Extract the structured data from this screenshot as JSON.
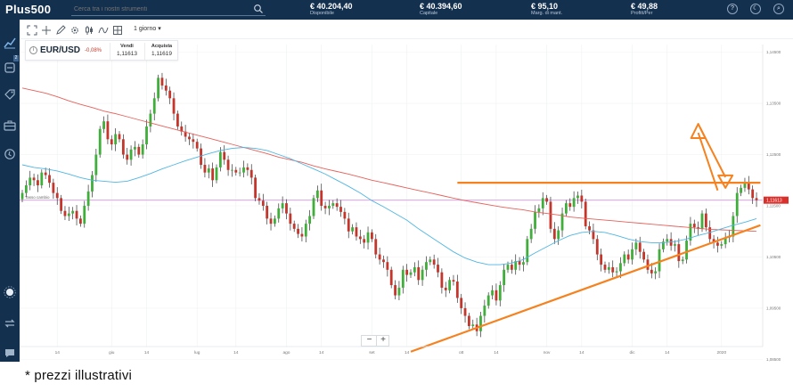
{
  "header": {
    "logo": "Plus500",
    "search": {
      "placeholder": "Cerca tra i nostri strumenti"
    },
    "account": [
      {
        "value": "€ 40.204,40",
        "label": "Disponibile"
      },
      {
        "value": "€ 40.394,60",
        "label": "Capitale"
      },
      {
        "value": "€ 95,10",
        "label": "Marg. di mant."
      },
      {
        "value": "€ 49,88",
        "label": "Profitt/Per"
      }
    ],
    "buttons": [
      "?",
      "☾",
      "⌕"
    ]
  },
  "sidebar": {
    "items": [
      {
        "icon": "chart-icon"
      },
      {
        "icon": "positions-icon",
        "badge": "2"
      },
      {
        "icon": "tag-icon"
      },
      {
        "icon": "portfolio-icon"
      },
      {
        "icon": "history-icon"
      },
      {
        "icon": "light-mode-icon"
      },
      {
        "icon": "switch-icon"
      },
      {
        "icon": "chat-icon"
      }
    ]
  },
  "toolbar": {
    "timeframe": "1 giorno ▾"
  },
  "instrument": {
    "name": "EUR/USD",
    "change": "-0,08%",
    "sell_label": "Vendi",
    "sell_value": "1,11613",
    "buy_label": "Acquista",
    "buy_value": "1,11619"
  },
  "chart_data": {
    "type": "candlestick",
    "ylim": [
      1.0875,
      1.1465
    ],
    "y_ticks": [
      "1,14500",
      "1,13500",
      "1,12500",
      "1,11500",
      "1,10500",
      "1,09500",
      "1,08500"
    ],
    "y_tick_values": [
      1.145,
      1.135,
      1.125,
      1.115,
      1.105,
      1.095,
      1.085
    ],
    "current_price_label": "1,11613",
    "current_price": 1.1161,
    "price_line_label": "Tasso cambio",
    "x_tick_labels": [
      "14",
      "giu",
      "14",
      "lug",
      "14",
      "ago",
      "14",
      "set",
      "14",
      "ott",
      "14",
      "nov",
      "14",
      "dic",
      "14",
      "2020"
    ],
    "x_tick_slots": [
      9,
      23,
      32,
      45,
      55,
      68,
      77,
      90,
      99,
      113,
      122,
      135,
      144,
      157,
      166,
      180
    ],
    "closes": [
      1.1175,
      1.119,
      1.1205,
      1.12,
      1.119,
      1.1215,
      1.121,
      1.1195,
      1.1175,
      1.1165,
      1.114,
      1.113,
      1.1135,
      1.114,
      1.1125,
      1.1115,
      1.115,
      1.1178,
      1.121,
      1.125,
      1.13,
      1.1315,
      1.128,
      1.127,
      1.129,
      1.128,
      1.125,
      1.124,
      1.126,
      1.1265,
      1.125,
      1.127,
      1.1305,
      1.133,
      1.136,
      1.14,
      1.1385,
      1.1375,
      1.136,
      1.133,
      1.1305,
      1.1295,
      1.1285,
      1.128,
      1.1275,
      1.1262,
      1.123,
      1.1215,
      1.1223,
      1.12,
      1.1225,
      1.1255,
      1.124,
      1.122,
      1.122,
      1.1215,
      1.1215,
      1.1225,
      1.122,
      1.1205,
      1.1165,
      1.116,
      1.115,
      1.1125,
      1.1115,
      1.1125,
      1.1145,
      1.1155,
      1.1135,
      1.1115,
      1.1105,
      1.1095,
      1.109,
      1.1115,
      1.113,
      1.1165,
      1.118,
      1.115,
      1.1145,
      1.115,
      1.1155,
      1.1148,
      1.1138,
      1.1125,
      1.11,
      1.1108,
      1.109,
      1.1085,
      1.1078,
      1.1098,
      1.1085,
      1.1055,
      1.1045,
      1.104,
      1.1025,
      1.0995,
      1.0975,
      1.099,
      1.1025,
      1.1015,
      1.102,
      1.103,
      1.1005,
      1.1025,
      1.104,
      1.1045,
      1.1035,
      1.102,
      1.099,
      1.0985,
      1.1005,
      1.1002,
      1.097,
      1.095,
      1.0935,
      1.0915,
      1.0918,
      1.0905,
      1.0935,
      1.0955,
      1.0975,
      1.0985,
      1.0965,
      1.0995,
      1.1025,
      1.1035,
      1.1025,
      1.1042,
      1.1035,
      1.104,
      1.1085,
      1.1105,
      1.1138,
      1.1145,
      1.1165,
      1.1158,
      1.1105,
      1.1085,
      1.1102,
      1.1135,
      1.1155,
      1.1148,
      1.1165,
      1.117,
      1.1158,
      1.111,
      1.1102,
      1.1085,
      1.1055,
      1.1035,
      1.1025,
      1.103,
      1.102,
      1.1022,
      1.1038,
      1.1055,
      1.1045,
      1.1065,
      1.1078,
      1.106,
      1.1045,
      1.1025,
      1.1018,
      1.1022,
      1.1065,
      1.108,
      1.1085,
      1.1072,
      1.1075,
      1.1042,
      1.1045,
      1.1082,
      1.1115,
      1.1108,
      1.1105,
      1.1135,
      1.1108,
      1.1085,
      1.1078,
      1.1072,
      1.1075,
      1.1088,
      1.109,
      1.113,
      1.1175,
      1.1185,
      1.1195,
      1.1182,
      1.1165,
      1.1161
    ],
    "ma_fast": [
      1.123,
      1.1225,
      1.1222,
      1.1218,
      1.1212,
      1.1205,
      1.12,
      1.1198,
      1.1196,
      1.1198,
      1.1205,
      1.1213,
      1.1222,
      1.123,
      1.1238,
      1.1245,
      1.1252,
      1.1258,
      1.1262,
      1.1264,
      1.1262,
      1.1258,
      1.125,
      1.1242,
      1.1232,
      1.1222,
      1.1212,
      1.12,
      1.1188,
      1.1175,
      1.116,
      1.1148,
      1.1135,
      1.1122,
      1.1105,
      1.109,
      1.1075,
      1.106,
      1.1048,
      1.104,
      1.1035,
      1.1035,
      1.1038,
      1.1045,
      1.1058,
      1.107,
      1.1082,
      1.1092,
      1.1098,
      1.11,
      1.1098,
      1.1092,
      1.1085,
      1.108,
      1.1078,
      1.1078,
      1.108,
      1.1085,
      1.1092,
      1.1098,
      1.1105,
      1.1112,
      1.1118,
      1.1125
    ],
    "ma_slow": [
      1.138,
      1.1375,
      1.137,
      1.1363,
      1.1355,
      1.1348,
      1.1342,
      1.1335,
      1.133,
      1.1324,
      1.1318,
      1.1312,
      1.1306,
      1.13,
      1.1294,
      1.1288,
      1.1282,
      1.1276,
      1.127,
      1.1264,
      1.1258,
      1.1252,
      1.1245,
      1.124,
      1.1235,
      1.1228,
      1.1222,
      1.1217,
      1.1212,
      1.1206,
      1.12,
      1.1195,
      1.119,
      1.1185,
      1.118,
      1.1175,
      1.117,
      1.1165,
      1.116,
      1.1156,
      1.1152,
      1.1148,
      1.1145,
      1.1142,
      1.1138,
      1.1135,
      1.1132,
      1.1128,
      1.1126,
      1.1124,
      1.1122,
      1.112,
      1.1118,
      1.1116,
      1.1114,
      1.1112,
      1.111,
      1.1108,
      1.1106,
      1.1104,
      1.1103,
      1.1102,
      1.1101,
      1.11
    ],
    "annotations": {
      "resistance_level": 1.1195,
      "resistance_from_slot": 112,
      "support_from": [
        100,
        1.0865
      ],
      "support_to": [
        190,
        1.1112
      ],
      "arrow_up_to": [
        174,
        1.131
      ],
      "arrow_down_to": [
        181,
        1.1185
      ]
    },
    "colors": {
      "up": "#3fae3a",
      "down": "#c4352b",
      "ma_fast": "#4fb6e3",
      "ma_slow": "#e8605a",
      "drawing": "#f5821f",
      "price_line": "#d9a3e6",
      "price_tag": "#d9302c"
    },
    "zoom": {
      "minus": "−",
      "plus": "+"
    }
  },
  "footnote": "* prezzi illustrativi"
}
